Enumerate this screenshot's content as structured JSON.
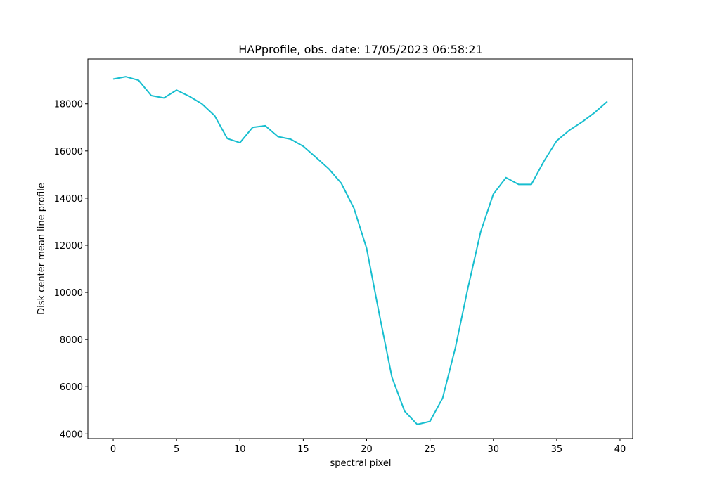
{
  "chart_data": {
    "type": "line",
    "title": "HAPprofile, obs. date: 17/05/2023 06:58:21",
    "xlabel": "spectral pixel",
    "ylabel": "Disk center mean line profile",
    "xlim": [
      -2,
      41
    ],
    "ylim": [
      3800,
      19900
    ],
    "xticks": [
      0,
      5,
      10,
      15,
      20,
      25,
      30,
      35,
      40
    ],
    "yticks": [
      4000,
      6000,
      8000,
      10000,
      12000,
      14000,
      16000,
      18000
    ],
    "grid": false,
    "series": [
      {
        "color": "#17becf",
        "x": [
          0,
          1,
          2,
          3,
          4,
          5,
          6,
          7,
          8,
          9,
          10,
          11,
          12,
          13,
          14,
          15,
          16,
          17,
          18,
          19,
          20,
          21,
          22,
          23,
          24,
          25,
          26,
          27,
          28,
          29,
          30,
          31,
          32,
          33,
          34,
          35,
          36,
          37,
          38,
          39
        ],
        "y": [
          19050,
          19150,
          19000,
          18350,
          18250,
          18580,
          18320,
          18000,
          17500,
          16530,
          16350,
          17000,
          17070,
          16610,
          16500,
          16200,
          15730,
          15250,
          14630,
          13570,
          11870,
          9080,
          6400,
          4960,
          4400,
          4530,
          5520,
          7640,
          10200,
          12570,
          14170,
          14870,
          14580,
          14580,
          15570,
          16430,
          16880,
          17230,
          17630,
          18100
        ]
      }
    ]
  }
}
